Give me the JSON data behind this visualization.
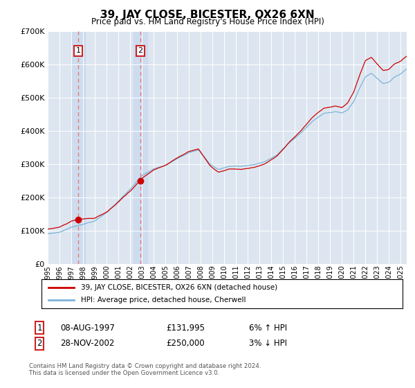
{
  "title": "39, JAY CLOSE, BICESTER, OX26 6XN",
  "subtitle": "Price paid vs. HM Land Registry's House Price Index (HPI)",
  "legend_line1": "39, JAY CLOSE, BICESTER, OX26 6XN (detached house)",
  "legend_line2": "HPI: Average price, detached house, Cherwell",
  "sale1_date": "08-AUG-1997",
  "sale1_price": 131995,
  "sale1_hpi_text": "6% ↑ HPI",
  "sale2_date": "28-NOV-2002",
  "sale2_price": 250000,
  "sale2_hpi_text": "3% ↓ HPI",
  "footnote": "Contains HM Land Registry data © Crown copyright and database right 2024.\nThis data is licensed under the Open Government Licence v3.0.",
  "hpi_color": "#7ab3d9",
  "price_color": "#cc0000",
  "vline_color": "#e87878",
  "bg_color": "#dde6f0",
  "ylim": [
    0,
    700000
  ],
  "yticks": [
    0,
    100000,
    200000,
    300000,
    400000,
    500000,
    600000,
    700000
  ],
  "sale1_t": 1997.583,
  "sale2_t": 2002.875,
  "xmin": 1995.0,
  "xmax": 2025.5
}
